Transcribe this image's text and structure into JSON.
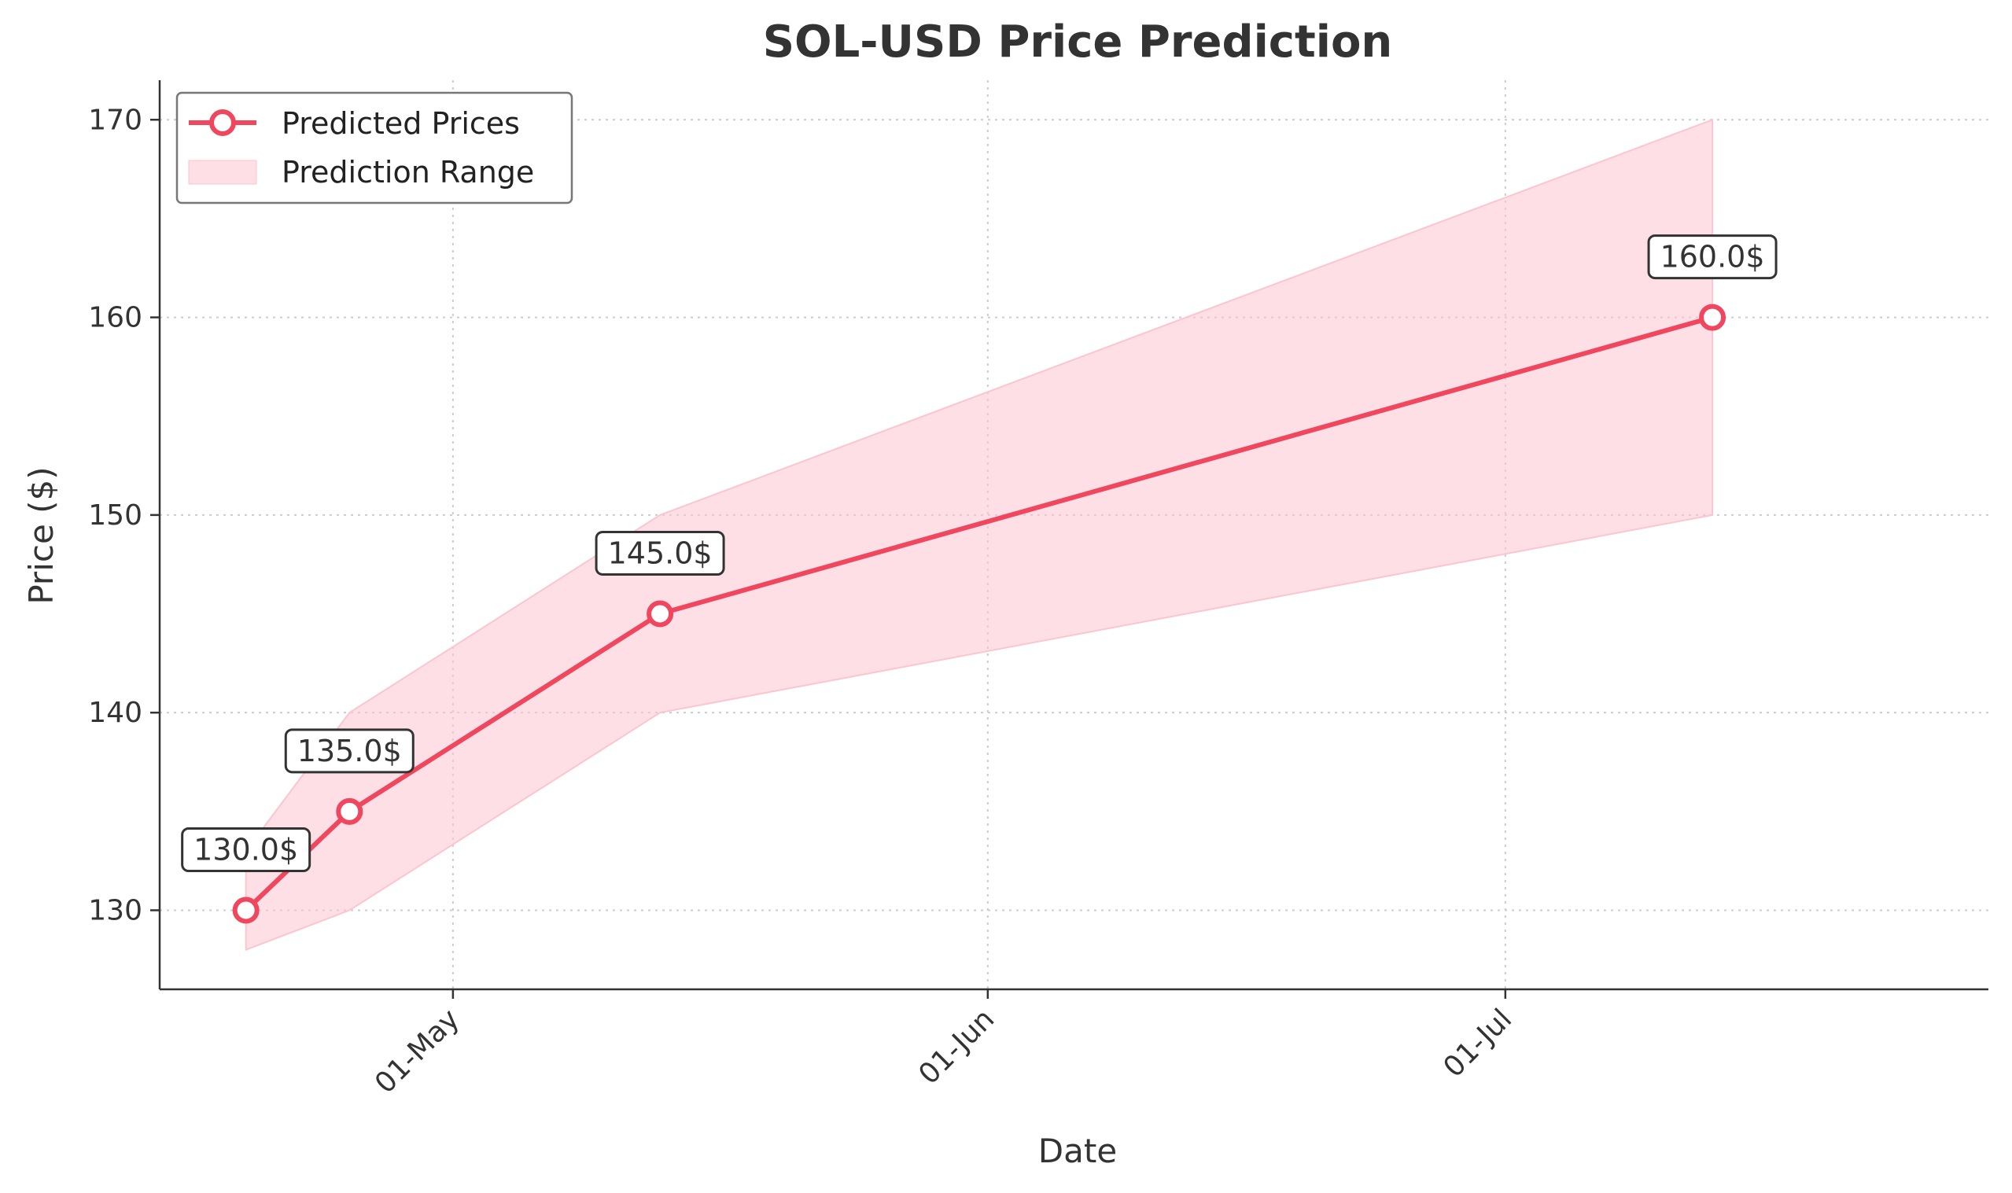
{
  "chart_data": {
    "type": "line",
    "title": "SOL-USD Price Prediction",
    "xlabel": "Date",
    "ylabel": "Price ($)",
    "x_dates": [
      "2024-04-19",
      "2024-04-25",
      "2024-05-13",
      "2024-07-13"
    ],
    "series": [
      {
        "name": "Predicted Prices",
        "values": [
          130.0,
          135.0,
          145.0,
          160.0
        ],
        "annotations": [
          "130.0$",
          "135.0$",
          "145.0$",
          "160.0$"
        ]
      }
    ],
    "range": {
      "name": "Prediction Range",
      "lower": [
        128,
        130,
        140,
        150
      ],
      "upper": [
        133,
        140,
        150,
        170
      ]
    },
    "xticks": [
      {
        "date": "2024-05-01",
        "label": "01-May"
      },
      {
        "date": "2024-06-01",
        "label": "01-Jun"
      },
      {
        "date": "2024-07-01",
        "label": "01-Jul"
      }
    ],
    "yticks": [
      130,
      140,
      150,
      160,
      170
    ],
    "ylim": [
      126,
      172
    ],
    "xlim": [
      "2024-04-14",
      "2024-07-29"
    ],
    "grid": true,
    "legend_position": "top-left",
    "colors": {
      "line": "#f0465e",
      "fill": "#fcc5cf",
      "text": "#333333",
      "grid": "#cccccc"
    }
  }
}
